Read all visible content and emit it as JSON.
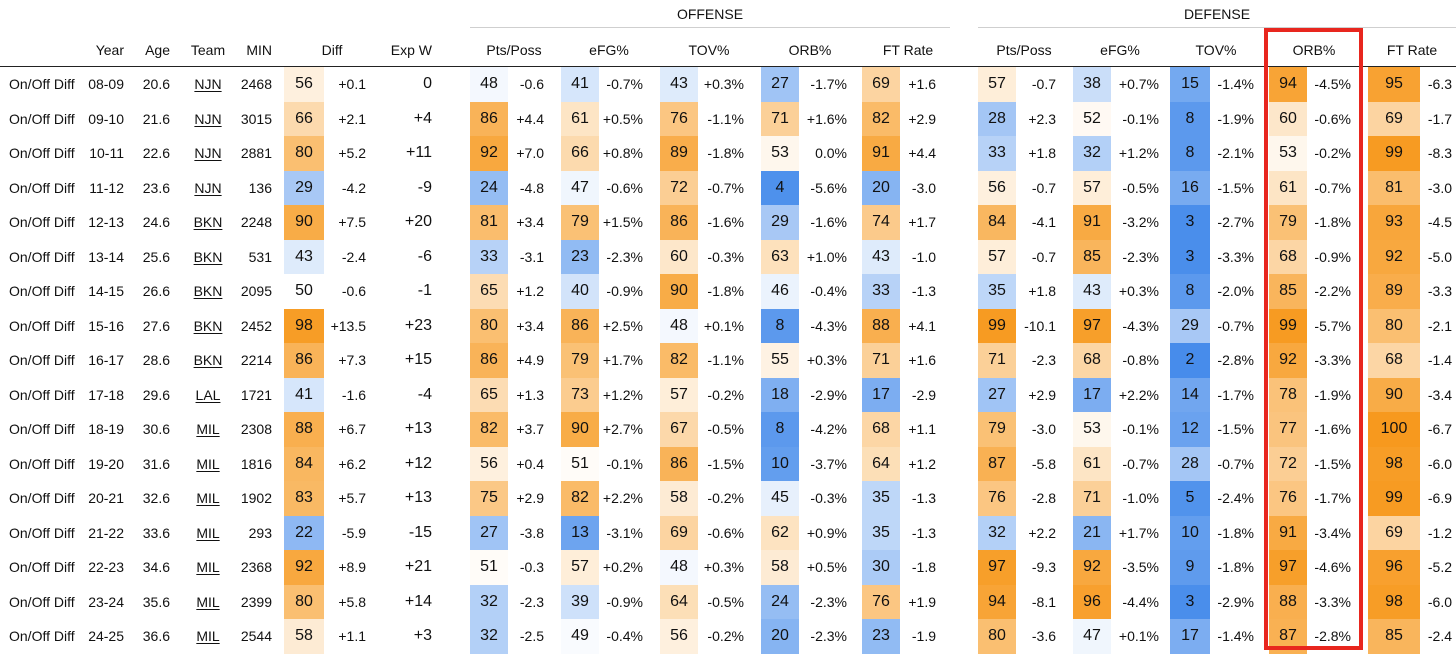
{
  "sections": {
    "offense": "OFFENSE",
    "defense": "DEFENSE"
  },
  "headers": {
    "year": "Year",
    "age": "Age",
    "team": "Team",
    "min": "MIN",
    "diff": "Diff",
    "exp_w": "Exp W",
    "off_pts_poss": "Pts/Poss",
    "off_efg": "eFG%",
    "off_tov": "TOV%",
    "off_orb": "ORB%",
    "off_ft_rate": "FT Rate",
    "def_pts_poss": "Pts/Poss",
    "def_efg": "eFG%",
    "def_tov": "TOV%",
    "def_orb": "ORB%",
    "def_ft_rate": "FT Rate"
  },
  "rows": [
    {
      "label": "On/Off Diff",
      "year": "08-09",
      "age": "20.6",
      "team": "NJN",
      "min": "2468",
      "diff": [
        "56",
        "+0.1"
      ],
      "exp_w": "0",
      "off": [
        [
          "48",
          "-0.6"
        ],
        [
          "41",
          "-0.7%"
        ],
        [
          "43",
          "+0.3%"
        ],
        [
          "27",
          "-1.7%"
        ],
        [
          "69",
          "+1.6"
        ]
      ],
      "def": [
        [
          "57",
          "-0.7"
        ],
        [
          "38",
          "+0.7%"
        ],
        [
          "15",
          "-1.4%"
        ],
        [
          "94",
          "-4.5%"
        ],
        [
          "95",
          "-6.3"
        ]
      ]
    },
    {
      "label": "On/Off Diff",
      "year": "09-10",
      "age": "21.6",
      "team": "NJN",
      "min": "3015",
      "diff": [
        "66",
        "+2.1"
      ],
      "exp_w": "+4",
      "off": [
        [
          "86",
          "+4.4"
        ],
        [
          "61",
          "+0.5%"
        ],
        [
          "76",
          "-1.1%"
        ],
        [
          "71",
          "+1.6%"
        ],
        [
          "82",
          "+2.9"
        ]
      ],
      "def": [
        [
          "28",
          "+2.3"
        ],
        [
          "52",
          "-0.1%"
        ],
        [
          "8",
          "-1.9%"
        ],
        [
          "60",
          "-0.6%"
        ],
        [
          "69",
          "-1.7"
        ]
      ]
    },
    {
      "label": "On/Off Diff",
      "year": "10-11",
      "age": "22.6",
      "team": "NJN",
      "min": "2881",
      "diff": [
        "80",
        "+5.2"
      ],
      "exp_w": "+11",
      "off": [
        [
          "92",
          "+7.0"
        ],
        [
          "66",
          "+0.8%"
        ],
        [
          "89",
          "-1.8%"
        ],
        [
          "53",
          "0.0%"
        ],
        [
          "91",
          "+4.4"
        ]
      ],
      "def": [
        [
          "33",
          "+1.8"
        ],
        [
          "32",
          "+1.2%"
        ],
        [
          "8",
          "-2.1%"
        ],
        [
          "53",
          "-0.2%"
        ],
        [
          "99",
          "-8.3"
        ]
      ]
    },
    {
      "label": "On/Off Diff",
      "year": "11-12",
      "age": "23.6",
      "team": "NJN",
      "min": "136",
      "diff": [
        "29",
        "-4.2"
      ],
      "exp_w": "-9",
      "off": [
        [
          "24",
          "-4.8"
        ],
        [
          "47",
          "-0.6%"
        ],
        [
          "72",
          "-0.7%"
        ],
        [
          "4",
          "-5.6%"
        ],
        [
          "20",
          "-3.0"
        ]
      ],
      "def": [
        [
          "56",
          "-0.7"
        ],
        [
          "57",
          "-0.5%"
        ],
        [
          "16",
          "-1.5%"
        ],
        [
          "61",
          "-0.7%"
        ],
        [
          "81",
          "-3.0"
        ]
      ]
    },
    {
      "label": "On/Off Diff",
      "year": "12-13",
      "age": "24.6",
      "team": "BKN",
      "min": "2248",
      "diff": [
        "90",
        "+7.5"
      ],
      "exp_w": "+20",
      "off": [
        [
          "81",
          "+3.4"
        ],
        [
          "79",
          "+1.5%"
        ],
        [
          "86",
          "-1.6%"
        ],
        [
          "29",
          "-1.6%"
        ],
        [
          "74",
          "+1.7"
        ]
      ],
      "def": [
        [
          "84",
          "-4.1"
        ],
        [
          "91",
          "-3.2%"
        ],
        [
          "3",
          "-2.7%"
        ],
        [
          "79",
          "-1.8%"
        ],
        [
          "93",
          "-4.5"
        ]
      ]
    },
    {
      "label": "On/Off Diff",
      "year": "13-14",
      "age": "25.6",
      "team": "BKN",
      "min": "531",
      "diff": [
        "43",
        "-2.4"
      ],
      "exp_w": "-6",
      "off": [
        [
          "33",
          "-3.1"
        ],
        [
          "23",
          "-2.3%"
        ],
        [
          "60",
          "-0.3%"
        ],
        [
          "63",
          "+1.0%"
        ],
        [
          "43",
          "-1.0"
        ]
      ],
      "def": [
        [
          "57",
          "-0.7"
        ],
        [
          "85",
          "-2.3%"
        ],
        [
          "3",
          "-3.3%"
        ],
        [
          "68",
          "-0.9%"
        ],
        [
          "92",
          "-5.0"
        ]
      ]
    },
    {
      "label": "On/Off Diff",
      "year": "14-15",
      "age": "26.6",
      "team": "BKN",
      "min": "2095",
      "diff": [
        "50",
        "-0.6"
      ],
      "exp_w": "-1",
      "off": [
        [
          "65",
          "+1.2"
        ],
        [
          "40",
          "-0.9%"
        ],
        [
          "90",
          "-1.8%"
        ],
        [
          "46",
          "-0.4%"
        ],
        [
          "33",
          "-1.3"
        ]
      ],
      "def": [
        [
          "35",
          "+1.8"
        ],
        [
          "43",
          "+0.3%"
        ],
        [
          "8",
          "-2.0%"
        ],
        [
          "85",
          "-2.2%"
        ],
        [
          "89",
          "-3.3"
        ]
      ]
    },
    {
      "label": "On/Off Diff",
      "year": "15-16",
      "age": "27.6",
      "team": "BKN",
      "min": "2452",
      "diff": [
        "98",
        "+13.5"
      ],
      "exp_w": "+23",
      "off": [
        [
          "80",
          "+3.4"
        ],
        [
          "86",
          "+2.5%"
        ],
        [
          "48",
          "+0.1%"
        ],
        [
          "8",
          "-4.3%"
        ],
        [
          "88",
          "+4.1"
        ]
      ],
      "def": [
        [
          "99",
          "-10.1"
        ],
        [
          "97",
          "-4.3%"
        ],
        [
          "29",
          "-0.7%"
        ],
        [
          "99",
          "-5.7%"
        ],
        [
          "80",
          "-2.1"
        ]
      ]
    },
    {
      "label": "On/Off Diff",
      "year": "16-17",
      "age": "28.6",
      "team": "BKN",
      "min": "2214",
      "diff": [
        "86",
        "+7.3"
      ],
      "exp_w": "+15",
      "off": [
        [
          "86",
          "+4.9"
        ],
        [
          "79",
          "+1.7%"
        ],
        [
          "82",
          "-1.1%"
        ],
        [
          "55",
          "+0.3%"
        ],
        [
          "71",
          "+1.6"
        ]
      ],
      "def": [
        [
          "71",
          "-2.3"
        ],
        [
          "68",
          "-0.8%"
        ],
        [
          "2",
          "-2.8%"
        ],
        [
          "92",
          "-3.3%"
        ],
        [
          "68",
          "-1.4"
        ]
      ]
    },
    {
      "label": "On/Off Diff",
      "year": "17-18",
      "age": "29.6",
      "team": "LAL",
      "min": "1721",
      "diff": [
        "41",
        "-1.6"
      ],
      "exp_w": "-4",
      "off": [
        [
          "65",
          "+1.3"
        ],
        [
          "73",
          "+1.2%"
        ],
        [
          "57",
          "-0.2%"
        ],
        [
          "18",
          "-2.9%"
        ],
        [
          "17",
          "-2.9"
        ]
      ],
      "def": [
        [
          "27",
          "+2.9"
        ],
        [
          "17",
          "+2.2%"
        ],
        [
          "14",
          "-1.7%"
        ],
        [
          "78",
          "-1.9%"
        ],
        [
          "90",
          "-3.4"
        ]
      ]
    },
    {
      "label": "On/Off Diff",
      "year": "18-19",
      "age": "30.6",
      "team": "MIL",
      "min": "2308",
      "diff": [
        "88",
        "+6.7"
      ],
      "exp_w": "+13",
      "off": [
        [
          "82",
          "+3.7"
        ],
        [
          "90",
          "+2.7%"
        ],
        [
          "67",
          "-0.5%"
        ],
        [
          "8",
          "-4.2%"
        ],
        [
          "68",
          "+1.1"
        ]
      ],
      "def": [
        [
          "79",
          "-3.0"
        ],
        [
          "53",
          "-0.1%"
        ],
        [
          "12",
          "-1.5%"
        ],
        [
          "77",
          "-1.6%"
        ],
        [
          "100",
          "-6.7"
        ]
      ]
    },
    {
      "label": "On/Off Diff",
      "year": "19-20",
      "age": "31.6",
      "team": "MIL",
      "min": "1816",
      "diff": [
        "84",
        "+6.2"
      ],
      "exp_w": "+12",
      "off": [
        [
          "56",
          "+0.4"
        ],
        [
          "51",
          "-0.1%"
        ],
        [
          "86",
          "-1.5%"
        ],
        [
          "10",
          "-3.7%"
        ],
        [
          "64",
          "+1.2"
        ]
      ],
      "def": [
        [
          "87",
          "-5.8"
        ],
        [
          "61",
          "-0.7%"
        ],
        [
          "28",
          "-0.7%"
        ],
        [
          "72",
          "-1.5%"
        ],
        [
          "98",
          "-6.0"
        ]
      ]
    },
    {
      "label": "On/Off Diff",
      "year": "20-21",
      "age": "32.6",
      "team": "MIL",
      "min": "1902",
      "diff": [
        "83",
        "+5.7"
      ],
      "exp_w": "+13",
      "off": [
        [
          "75",
          "+2.9"
        ],
        [
          "82",
          "+2.2%"
        ],
        [
          "58",
          "-0.2%"
        ],
        [
          "45",
          "-0.3%"
        ],
        [
          "35",
          "-1.3"
        ]
      ],
      "def": [
        [
          "76",
          "-2.8"
        ],
        [
          "71",
          "-1.0%"
        ],
        [
          "5",
          "-2.4%"
        ],
        [
          "76",
          "-1.7%"
        ],
        [
          "99",
          "-6.9"
        ]
      ]
    },
    {
      "label": "On/Off Diff",
      "year": "21-22",
      "age": "33.6",
      "team": "MIL",
      "min": "293",
      "diff": [
        "22",
        "-5.9"
      ],
      "exp_w": "-15",
      "off": [
        [
          "27",
          "-3.8"
        ],
        [
          "13",
          "-3.1%"
        ],
        [
          "69",
          "-0.6%"
        ],
        [
          "62",
          "+0.9%"
        ],
        [
          "35",
          "-1.3"
        ]
      ],
      "def": [
        [
          "32",
          "+2.2"
        ],
        [
          "21",
          "+1.7%"
        ],
        [
          "10",
          "-1.8%"
        ],
        [
          "91",
          "-3.4%"
        ],
        [
          "69",
          "-1.2"
        ]
      ]
    },
    {
      "label": "On/Off Diff",
      "year": "22-23",
      "age": "34.6",
      "team": "MIL",
      "min": "2368",
      "diff": [
        "92",
        "+8.9"
      ],
      "exp_w": "+21",
      "off": [
        [
          "51",
          "-0.3"
        ],
        [
          "57",
          "+0.2%"
        ],
        [
          "48",
          "+0.3%"
        ],
        [
          "58",
          "+0.5%"
        ],
        [
          "30",
          "-1.8"
        ]
      ],
      "def": [
        [
          "97",
          "-9.3"
        ],
        [
          "92",
          "-3.5%"
        ],
        [
          "9",
          "-1.8%"
        ],
        [
          "97",
          "-4.6%"
        ],
        [
          "96",
          "-5.2"
        ]
      ]
    },
    {
      "label": "On/Off Diff",
      "year": "23-24",
      "age": "35.6",
      "team": "MIL",
      "min": "2399",
      "diff": [
        "80",
        "+5.8"
      ],
      "exp_w": "+14",
      "off": [
        [
          "32",
          "-2.3"
        ],
        [
          "39",
          "-0.9%"
        ],
        [
          "64",
          "-0.5%"
        ],
        [
          "24",
          "-2.3%"
        ],
        [
          "76",
          "+1.9"
        ]
      ],
      "def": [
        [
          "94",
          "-8.1"
        ],
        [
          "96",
          "-4.4%"
        ],
        [
          "3",
          "-2.9%"
        ],
        [
          "88",
          "-3.3%"
        ],
        [
          "98",
          "-6.0"
        ]
      ]
    },
    {
      "label": "On/Off Diff",
      "year": "24-25",
      "age": "36.6",
      "team": "MIL",
      "min": "2544",
      "diff": [
        "58",
        "+1.1"
      ],
      "exp_w": "+3",
      "off": [
        [
          "32",
          "-2.5"
        ],
        [
          "49",
          "-0.4%"
        ],
        [
          "56",
          "-0.2%"
        ],
        [
          "20",
          "-2.3%"
        ],
        [
          "23",
          "-1.9"
        ]
      ],
      "def": [
        [
          "80",
          "-3.6"
        ],
        [
          "47",
          "+0.1%"
        ],
        [
          "17",
          "-1.4%"
        ],
        [
          "87",
          "-2.8%"
        ],
        [
          "85",
          "-2.4"
        ]
      ]
    }
  ]
}
